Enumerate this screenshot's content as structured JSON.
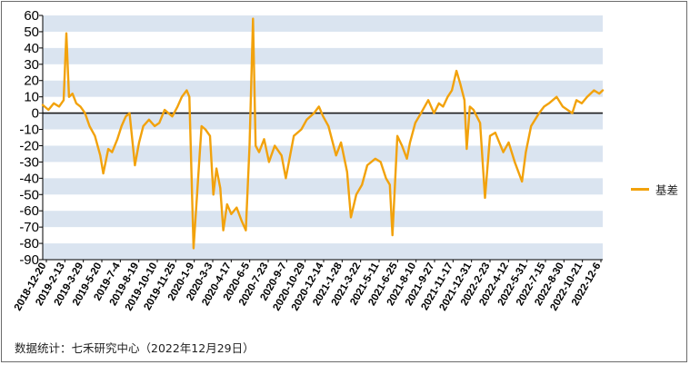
{
  "chart_data": {
    "type": "line",
    "series": [
      {
        "name": "基差",
        "color": "#f2a20c",
        "points": [
          [
            "2018-12-20",
            5
          ],
          [
            "2019-1-4",
            2
          ],
          [
            "2019-1-18",
            6
          ],
          [
            "2019-2-1",
            4
          ],
          [
            "2019-2-13",
            8
          ],
          [
            "2019-2-20",
            49
          ],
          [
            "2019-2-27",
            10
          ],
          [
            "2019-3-8",
            12
          ],
          [
            "2019-3-18",
            6
          ],
          [
            "2019-3-29",
            4
          ],
          [
            "2019-4-10",
            0
          ],
          [
            "2019-4-22",
            -8
          ],
          [
            "2019-5-6",
            -14
          ],
          [
            "2019-5-20",
            -26
          ],
          [
            "2019-5-28",
            -37
          ],
          [
            "2019-6-10",
            -22
          ],
          [
            "2019-6-20",
            -24
          ],
          [
            "2019-7-4",
            -16
          ],
          [
            "2019-7-15",
            -8
          ],
          [
            "2019-7-26",
            -2
          ],
          [
            "2019-8-5",
            0
          ],
          [
            "2019-8-19",
            -32
          ],
          [
            "2019-8-30",
            -18
          ],
          [
            "2019-9-10",
            -8
          ],
          [
            "2019-9-25",
            -4
          ],
          [
            "2019-10-10",
            -8
          ],
          [
            "2019-10-22",
            -6
          ],
          [
            "2019-11-5",
            2
          ],
          [
            "2019-11-25",
            -2
          ],
          [
            "2019-12-9",
            4
          ],
          [
            "2019-12-20",
            10
          ],
          [
            "2020-1-2",
            14
          ],
          [
            "2020-1-9",
            10
          ],
          [
            "2020-1-20",
            -83
          ],
          [
            "2020-2-10",
            -8
          ],
          [
            "2020-2-20",
            -10
          ],
          [
            "2020-3-3",
            -14
          ],
          [
            "2020-3-12",
            -50
          ],
          [
            "2020-3-20",
            -34
          ],
          [
            "2020-3-30",
            -46
          ],
          [
            "2020-4-7",
            -72
          ],
          [
            "2020-4-17",
            -56
          ],
          [
            "2020-4-28",
            -62
          ],
          [
            "2020-5-12",
            -58
          ],
          [
            "2020-5-25",
            -66
          ],
          [
            "2020-6-5",
            -72
          ],
          [
            "2020-6-15",
            -20
          ],
          [
            "2020-6-24",
            58
          ],
          [
            "2020-7-1",
            -20
          ],
          [
            "2020-7-10",
            -24
          ],
          [
            "2020-7-23",
            -16
          ],
          [
            "2020-8-5",
            -30
          ],
          [
            "2020-8-20",
            -20
          ],
          [
            "2020-9-7",
            -26
          ],
          [
            "2020-9-18",
            -40
          ],
          [
            "2020-10-9",
            -14
          ],
          [
            "2020-10-29",
            -10
          ],
          [
            "2020-11-12",
            -4
          ],
          [
            "2020-12-1",
            0
          ],
          [
            "2020-12-14",
            4
          ],
          [
            "2020-12-25",
            -2
          ],
          [
            "2021-1-8",
            -8
          ],
          [
            "2021-1-28",
            -26
          ],
          [
            "2021-2-10",
            -18
          ],
          [
            "2021-2-26",
            -36
          ],
          [
            "2021-3-8",
            -64
          ],
          [
            "2021-3-22",
            -50
          ],
          [
            "2021-4-6",
            -44
          ],
          [
            "2021-4-20",
            -32
          ],
          [
            "2021-5-11",
            -28
          ],
          [
            "2021-5-25",
            -30
          ],
          [
            "2021-6-8",
            -40
          ],
          [
            "2021-6-18",
            -44
          ],
          [
            "2021-6-25",
            -75
          ],
          [
            "2021-7-8",
            -14
          ],
          [
            "2021-7-20",
            -20
          ],
          [
            "2021-8-2",
            -28
          ],
          [
            "2021-8-10",
            -18
          ],
          [
            "2021-8-24",
            -6
          ],
          [
            "2021-9-8",
            0
          ],
          [
            "2021-9-27",
            8
          ],
          [
            "2021-10-12",
            0
          ],
          [
            "2021-10-25",
            6
          ],
          [
            "2021-11-5",
            4
          ],
          [
            "2021-11-17",
            10
          ],
          [
            "2021-11-28",
            14
          ],
          [
            "2021-12-10",
            26
          ],
          [
            "2021-12-20",
            18
          ],
          [
            "2021-12-31",
            8
          ],
          [
            "2022-1-6",
            -22
          ],
          [
            "2022-1-14",
            4
          ],
          [
            "2022-1-24",
            2
          ],
          [
            "2022-2-10",
            -6
          ],
          [
            "2022-2-23",
            -52
          ],
          [
            "2022-3-8",
            -14
          ],
          [
            "2022-3-22",
            -12
          ],
          [
            "2022-4-12",
            -24
          ],
          [
            "2022-4-26",
            -18
          ],
          [
            "2022-5-12",
            -30
          ],
          [
            "2022-5-31",
            -42
          ],
          [
            "2022-6-10",
            -24
          ],
          [
            "2022-6-24",
            -8
          ],
          [
            "2022-7-15",
            0
          ],
          [
            "2022-7-28",
            4
          ],
          [
            "2022-8-10",
            6
          ],
          [
            "2022-8-30",
            10
          ],
          [
            "2022-9-15",
            4
          ],
          [
            "2022-10-10",
            0
          ],
          [
            "2022-10-21",
            8
          ],
          [
            "2022-11-4",
            6
          ],
          [
            "2022-11-18",
            10
          ],
          [
            "2022-12-6",
            14
          ],
          [
            "2022-12-20",
            12
          ],
          [
            "2022-12-29",
            14
          ]
        ]
      }
    ],
    "x_tick_labels": [
      "2018-12-20",
      "2019-2-13",
      "2019-3-29",
      "2019-5-20",
      "2019-7-4",
      "2019-8-19",
      "2019-10-10",
      "2019-11-25",
      "2020-1-9",
      "2020-3-3",
      "2020-4-17",
      "2020-6-5",
      "2020-7-23",
      "2020-9-7",
      "2020-10-29",
      "2020-12-14",
      "2021-1-28",
      "2021-3-22",
      "2021-5-11",
      "2021-6-25",
      "2021-8-10",
      "2021-9-27",
      "2021-11-17",
      "2021-12-31",
      "2022-2-23",
      "2022-4-12",
      "2022-5-31",
      "2022-7-15",
      "2022-8-30",
      "2022-10-21",
      "2022-12-6"
    ],
    "y_ticks": [
      60,
      50,
      40,
      30,
      20,
      10,
      0,
      -10,
      -20,
      -30,
      -40,
      -50,
      -60,
      -70,
      -80,
      -90
    ],
    "ylim": [
      -90,
      60
    ],
    "grid": "alternating horizontal bands",
    "legend_position": "right"
  },
  "source_note": "数据统计：七禾研究中心（2022年12月29日）"
}
